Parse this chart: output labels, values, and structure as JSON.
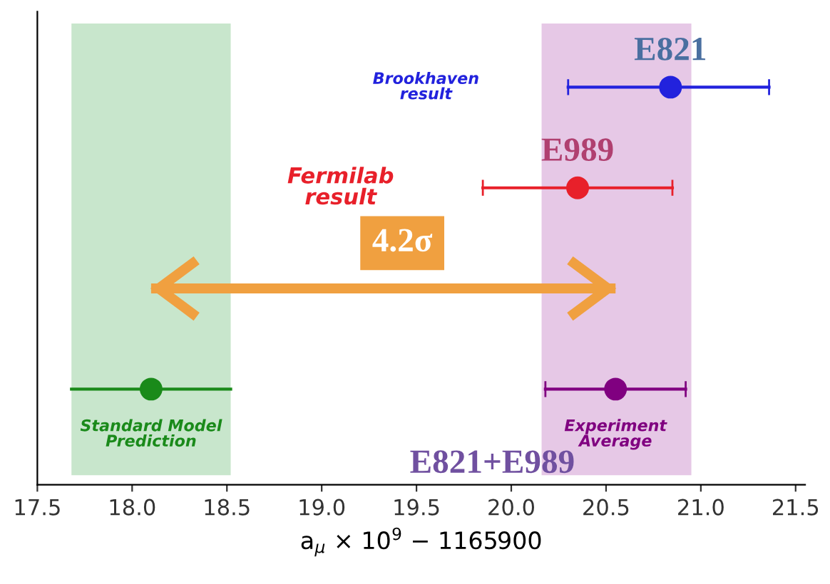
{
  "chart_data": {
    "type": "scatter",
    "orientation": "horizontal",
    "xlabel": "a$_{μ}$ × 10$^{9}$ − 1165900",
    "categories": [
      null,
      null,
      null,
      null
    ],
    "series": [
      {
        "name": "Brookhaven result",
        "color": "#2222dd",
        "values": [
          20.84,
          null,
          null,
          null
        ],
        "errors": [
          [
            20.3,
            21.36
          ],
          null,
          null,
          null
        ]
      },
      {
        "name": "Fermilab result",
        "color": "#e8202a",
        "values": [
          null,
          20.35,
          null,
          null
        ],
        "errors": [
          null,
          [
            19.85,
            20.85
          ],
          null,
          null
        ]
      },
      {
        "name": "Standard Model Prediction",
        "color": "#1a8a1a",
        "values": [
          null,
          null,
          null,
          18.1
        ],
        "errors": [
          null,
          null,
          null,
          [
            17.68,
            18.52
          ]
        ]
      },
      {
        "name": "Experiment Average",
        "color": "#800080",
        "values": [
          null,
          null,
          null,
          20.55
        ],
        "errors": [
          null,
          null,
          null,
          [
            20.18,
            20.92
          ]
        ]
      },
      {
        "type": "bar",
        "color": "#f0a040",
        "values": [
          null,
          null,
          2.45,
          null
        ],
        "base": [
          null,
          null,
          18.1,
          null
        ]
      }
    ],
    "bands": [
      {
        "axis": "x",
        "from": 17.68,
        "to": 18.52,
        "color": "#c8e6cc"
      },
      {
        "axis": "x",
        "from": 20.16,
        "to": 20.95,
        "color": "#e6c8e6"
      }
    ],
    "annotations": [
      "E821",
      "E989",
      "E821+E989",
      "4.2σ"
    ],
    "xlim": [
      17.5,
      21.55
    ],
    "xticks": [
      17.5,
      {
        "value": 18,
        "label": "18.0"
      },
      18.5,
      {
        "value": 19,
        "label": "19.0"
      },
      19.5,
      {
        "value": 20,
        "label": "20.0"
      },
      20.5,
      {
        "value": 21,
        "label": "21.0"
      },
      21.5
    ],
    "tick_labels": "x",
    "marker": "circle",
    "grid": false,
    "legend": false
  }
}
